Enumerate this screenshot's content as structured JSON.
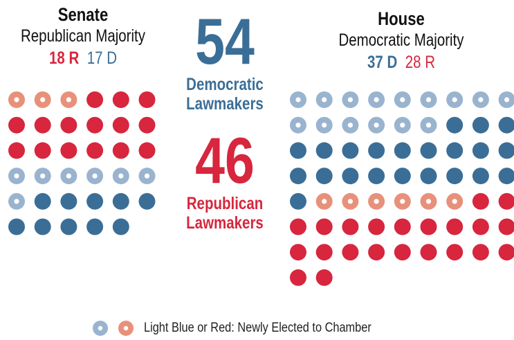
{
  "senate": {
    "title": "Senate",
    "majority": "Republican Majority",
    "rep_label": "18 R",
    "dem_label": "17 D",
    "rep_total": 18,
    "rep_new": 3,
    "dem_total": 17,
    "dem_new": 7
  },
  "house": {
    "title": "House",
    "majority": "Democratic Majority",
    "dem_label": "37 D",
    "rep_label": "28 R",
    "dem_total": 37,
    "dem_new": 15,
    "rep_total": 28,
    "rep_new": 6
  },
  "democratic": {
    "number": "54",
    "line1": "Democratic",
    "line2": "Lawmakers"
  },
  "republican": {
    "number": "46",
    "line1": "Republican",
    "line2": "Lawmakers"
  },
  "legend": {
    "text": "Light Blue or Red: Newly Elected to Chamber"
  },
  "colors": {
    "rep": "#d7263d",
    "dem": "#3b6e96",
    "rep_new": "#e8917a",
    "dem_new": "#9ab4cf"
  },
  "chart_data": {
    "type": "dot-grid",
    "series": [
      {
        "chamber": "Senate",
        "party": "R",
        "total": 18,
        "newly_elected": 3
      },
      {
        "chamber": "Senate",
        "party": "D",
        "total": 17,
        "newly_elected": 7
      },
      {
        "chamber": "House",
        "party": "D",
        "total": 37,
        "newly_elected": 15
      },
      {
        "chamber": "House",
        "party": "R",
        "total": 28,
        "newly_elected": 6
      }
    ],
    "totals": [
      {
        "party": "Democratic",
        "value": 54
      },
      {
        "party": "Republican",
        "value": 46
      }
    ]
  }
}
